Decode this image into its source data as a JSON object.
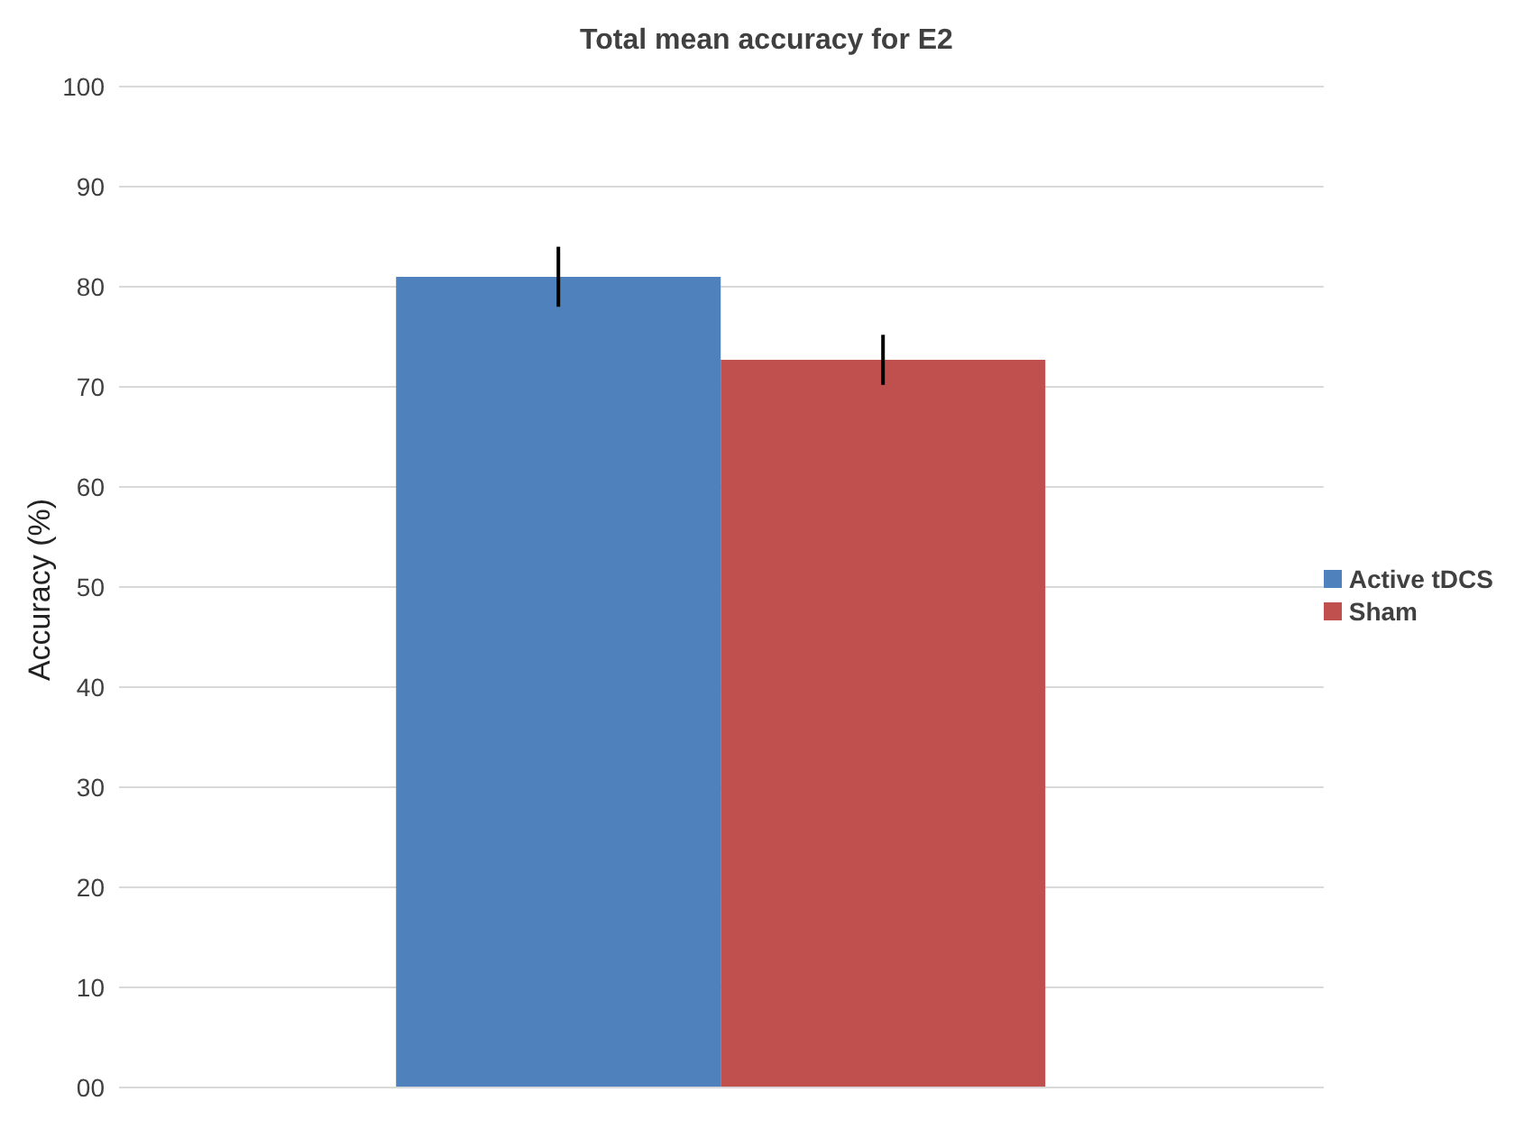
{
  "chart_data": {
    "type": "bar",
    "title": "Total mean accuracy for E2",
    "ylabel": "Accuracy (%)",
    "categories": [
      null
    ],
    "series": [
      {
        "name": "Active tDCS",
        "color": "#4f81bd",
        "values": [
          81
        ],
        "errors": [
          3
        ]
      },
      {
        "name": "Sham",
        "color": "#c0504d",
        "values": [
          72.7
        ],
        "errors": [
          2.5
        ]
      }
    ],
    "ylim": [
      0,
      100
    ],
    "yticks": [
      {
        "value": 0,
        "label": "00"
      },
      10,
      20,
      30,
      40,
      50,
      60,
      70,
      80,
      90,
      100
    ],
    "grid": "y",
    "legend": "right"
  }
}
